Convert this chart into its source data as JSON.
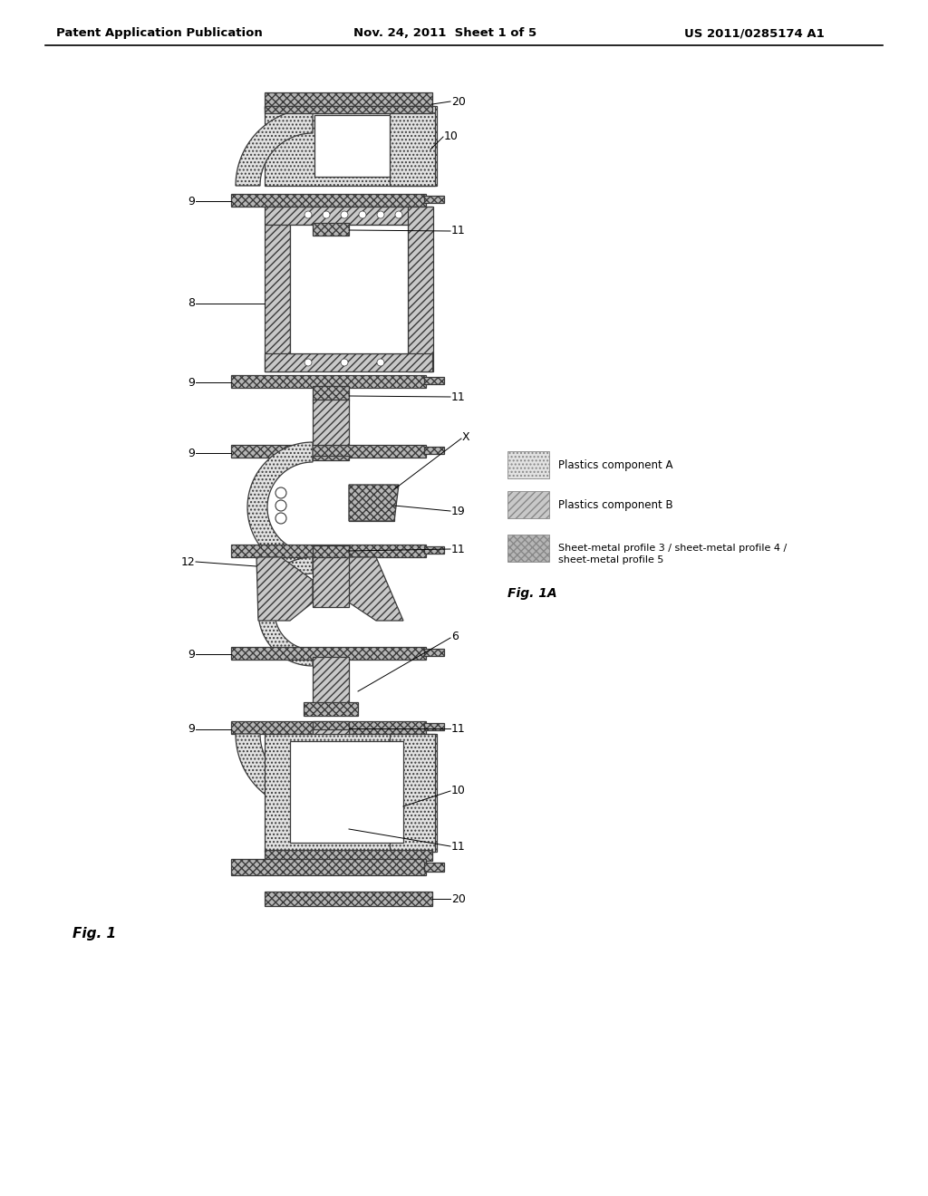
{
  "header_left": "Patent Application Publication",
  "header_center": "Nov. 24, 2011  Sheet 1 of 5",
  "header_right": "US 2011/0285174 A1",
  "fig_label": "Fig. 1",
  "fig1a_label": "Fig. 1A",
  "bg_color": "#ffffff",
  "line_color": "#3a3a3a",
  "fc_plasticA": "#e2e2e2",
  "fc_plasticB": "#c8c8c8",
  "fc_metal": "#b5b5b5",
  "hatch_A": "....",
  "hatch_B": "////",
  "hatch_M": "xxxx",
  "legend_labels": [
    "Plastics component A",
    "Plastics component B",
    "Sheet-metal profile 3 / sheet-metal profile 4 / sheet-metal profile 5"
  ]
}
